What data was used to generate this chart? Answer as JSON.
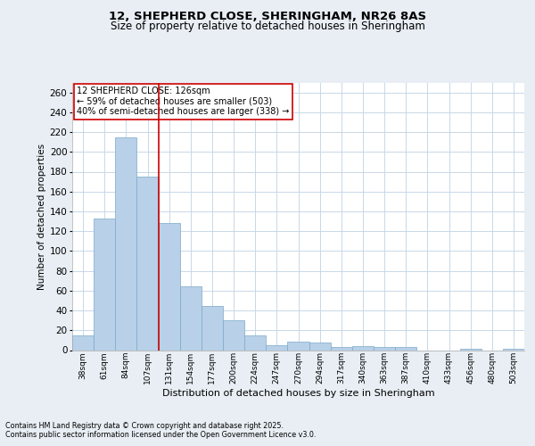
{
  "title1": "12, SHEPHERD CLOSE, SHERINGHAM, NR26 8AS",
  "title2": "Size of property relative to detached houses in Sheringham",
  "xlabel": "Distribution of detached houses by size in Sheringham",
  "ylabel": "Number of detached properties",
  "categories": [
    "38sqm",
    "61sqm",
    "84sqm",
    "107sqm",
    "131sqm",
    "154sqm",
    "177sqm",
    "200sqm",
    "224sqm",
    "247sqm",
    "270sqm",
    "294sqm",
    "317sqm",
    "340sqm",
    "363sqm",
    "387sqm",
    "410sqm",
    "433sqm",
    "456sqm",
    "480sqm",
    "503sqm"
  ],
  "values": [
    15,
    133,
    215,
    175,
    128,
    64,
    45,
    30,
    15,
    5,
    9,
    8,
    3,
    4,
    3,
    3,
    0,
    0,
    1,
    0,
    1
  ],
  "bar_color": "#b8d0e8",
  "bar_edge_color": "#7aaac8",
  "vline_color": "#cc0000",
  "annotation_text": "12 SHEPHERD CLOSE: 126sqm\n← 59% of detached houses are smaller (503)\n40% of semi-detached houses are larger (338) →",
  "annotation_box_color": "#ffffff",
  "annotation_box_edge": "#cc0000",
  "footer1": "Contains HM Land Registry data © Crown copyright and database right 2025.",
  "footer2": "Contains public sector information licensed under the Open Government Licence v3.0.",
  "bg_color": "#e8eef4",
  "plot_bg_color": "#ffffff",
  "grid_color": "#c8d8e8",
  "ylim": [
    0,
    270
  ],
  "yticks": [
    0,
    20,
    40,
    60,
    80,
    100,
    120,
    140,
    160,
    180,
    200,
    220,
    240,
    260
  ]
}
